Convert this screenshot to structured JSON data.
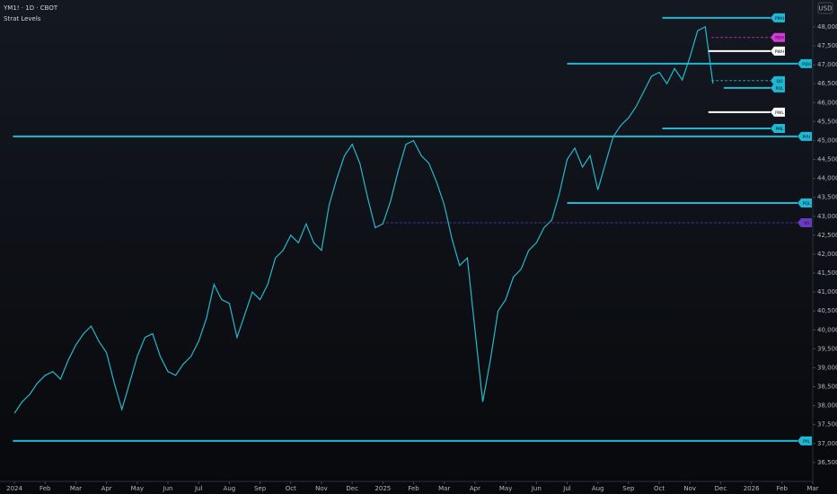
{
  "chart_data": {
    "type": "line",
    "title": "YM1! · 1D · CBOT",
    "subtitle": "Strat Levels",
    "currency": "USD",
    "x": [
      0,
      0.25,
      0.5,
      0.75,
      1,
      1.25,
      1.5,
      1.75,
      2,
      2.25,
      2.5,
      2.75,
      3,
      3.25,
      3.5,
      3.75,
      4,
      4.25,
      4.5,
      4.75,
      5,
      5.25,
      5.5,
      5.75,
      6,
      6.25,
      6.5,
      6.75,
      7,
      7.25,
      7.5,
      7.75,
      8,
      8.25,
      8.5,
      8.75,
      9,
      9.25,
      9.5,
      9.75,
      10,
      10.25,
      10.5,
      10.75,
      11,
      11.25,
      11.5,
      11.75,
      12,
      12.25,
      12.5,
      12.75,
      13,
      13.25,
      13.5,
      13.75,
      14,
      14.25,
      14.5,
      14.75,
      15,
      15.25,
      15.5,
      15.75,
      16,
      16.25,
      16.5,
      16.75,
      17,
      17.25,
      17.5,
      17.75,
      18,
      18.25,
      18.5,
      18.75,
      19,
      19.25,
      19.5,
      19.75,
      20,
      20.25,
      20.5,
      20.75,
      21,
      21.25,
      21.5,
      21.75,
      22,
      22.25,
      22.5,
      22.75
    ],
    "series": [
      {
        "name": "YM1!",
        "color": "#26b8cc",
        "values": [
          37800,
          38100,
          38300,
          38600,
          38800,
          38900,
          38700,
          39200,
          39600,
          39900,
          40100,
          39700,
          39400,
          38600,
          37900,
          38600,
          39300,
          39800,
          39900,
          39300,
          38900,
          38800,
          39100,
          39300,
          39700,
          40300,
          41200,
          40800,
          40700,
          39800,
          40400,
          41000,
          40800,
          41200,
          41900,
          42100,
          42500,
          42300,
          42800,
          42300,
          42100,
          43300,
          44000,
          44600,
          44900,
          44400,
          43500,
          42700,
          42800,
          43400,
          44200,
          44900,
          45000,
          44600,
          44400,
          43900,
          43300,
          42400,
          41700,
          41900,
          40000,
          38100,
          39200,
          40500,
          40800,
          41400,
          41600,
          42100,
          42300,
          42700,
          42900,
          43600,
          44500,
          44800,
          44300,
          44600,
          43700,
          44400,
          45100,
          45400,
          45600,
          45900,
          46300,
          46700,
          46800,
          46500,
          46900,
          46600,
          47200,
          47900,
          48000,
          46500
        ]
      }
    ],
    "levels": [
      {
        "label": "PMH",
        "value": 48240,
        "start": 21.1,
        "color": "#1fb8d4"
      },
      {
        "label": "PDH",
        "value": 47720,
        "start": 22.7,
        "color": "#d63ad8",
        "dashed": true
      },
      {
        "label": "PWH",
        "value": 47360,
        "start": 22.6,
        "color": "#ffffff"
      },
      {
        "label": "PQH",
        "value": 47030,
        "start": 18,
        "color": "#1fb8d4"
      },
      {
        "label": "QO",
        "value": 46580,
        "start": 22.7,
        "color": "#1fb8d4",
        "dashed": true
      },
      {
        "label": "PDL",
        "value": 46390,
        "start": 23.1,
        "color": "#1fb8d4"
      },
      {
        "label": "PWL",
        "value": 45750,
        "start": 22.6,
        "color": "#ffffff"
      },
      {
        "label": "PML",
        "value": 45320,
        "start": 21.1,
        "color": "#1fb8d4"
      },
      {
        "label": "PYH",
        "value": 45110,
        "start": -0.05,
        "color": "#1fb8d4"
      },
      {
        "label": "PQL",
        "value": 43350,
        "start": 18,
        "color": "#1fb8d4"
      },
      {
        "label": "YO",
        "value": 42830,
        "start": 12.1,
        "color": "#6a3bc2",
        "dashed": true
      },
      {
        "label": "PYL",
        "value": 37070,
        "start": -0.05,
        "color": "#1fb8d4"
      }
    ],
    "xlim": [
      -0.47,
      26
    ],
    "ylim": [
      36000,
      48710
    ],
    "xticks": [
      {
        "value": 0,
        "label": "2024"
      },
      {
        "value": 1,
        "label": "Feb"
      },
      {
        "value": 2,
        "label": "Mar"
      },
      {
        "value": 3,
        "label": "Apr"
      },
      {
        "value": 4,
        "label": "May"
      },
      {
        "value": 5,
        "label": "Jun"
      },
      {
        "value": 6,
        "label": "Jul"
      },
      {
        "value": 7,
        "label": "Aug"
      },
      {
        "value": 8,
        "label": "Sep"
      },
      {
        "value": 9,
        "label": "Oct"
      },
      {
        "value": 10,
        "label": "Nov"
      },
      {
        "value": 11,
        "label": "Dec"
      },
      {
        "value": 12,
        "label": "2025"
      },
      {
        "value": 13,
        "label": "Feb"
      },
      {
        "value": 14,
        "label": "Mar"
      },
      {
        "value": 15,
        "label": "Apr"
      },
      {
        "value": 16,
        "label": "May"
      },
      {
        "value": 17,
        "label": "Jun"
      },
      {
        "value": 18,
        "label": "Jul"
      },
      {
        "value": 19,
        "label": "Aug"
      },
      {
        "value": 20,
        "label": "Sep"
      },
      {
        "value": 21,
        "label": "Oct"
      },
      {
        "value": 22,
        "label": "Nov"
      },
      {
        "value": 23,
        "label": "Dec"
      },
      {
        "value": 24,
        "label": "2026"
      },
      {
        "value": 25,
        "label": "Feb"
      },
      {
        "value": 26,
        "label": "Mar"
      }
    ],
    "yticks": [
      {
        "value": 36500,
        "label": "36,500"
      },
      {
        "value": 37000,
        "label": "37,000"
      },
      {
        "value": 37500,
        "label": "37,500"
      },
      {
        "value": 38000,
        "label": "38,000"
      },
      {
        "value": 38500,
        "label": "38,500"
      },
      {
        "value": 39000,
        "label": "39,000"
      },
      {
        "value": 39500,
        "label": "39,500"
      },
      {
        "value": 40000,
        "label": "40,000"
      },
      {
        "value": 40500,
        "label": "40,500"
      },
      {
        "value": 41000,
        "label": "41,000"
      },
      {
        "value": 41500,
        "label": "41,500"
      },
      {
        "value": 42000,
        "label": "42,000"
      },
      {
        "value": 42500,
        "label": "42,500"
      },
      {
        "value": 43000,
        "label": "43,000"
      },
      {
        "value": 43500,
        "label": "43,500"
      },
      {
        "value": 44000,
        "label": "44,000"
      },
      {
        "value": 44500,
        "label": "44,500"
      },
      {
        "value": 45000,
        "label": "45,000"
      },
      {
        "value": 45500,
        "label": "45,500"
      },
      {
        "value": 46000,
        "label": "46,000"
      },
      {
        "value": 46500,
        "label": "46,500"
      },
      {
        "value": 47000,
        "label": "47,000"
      },
      {
        "value": 47500,
        "label": "47,500"
      },
      {
        "value": 48000,
        "label": "48,000"
      }
    ]
  }
}
